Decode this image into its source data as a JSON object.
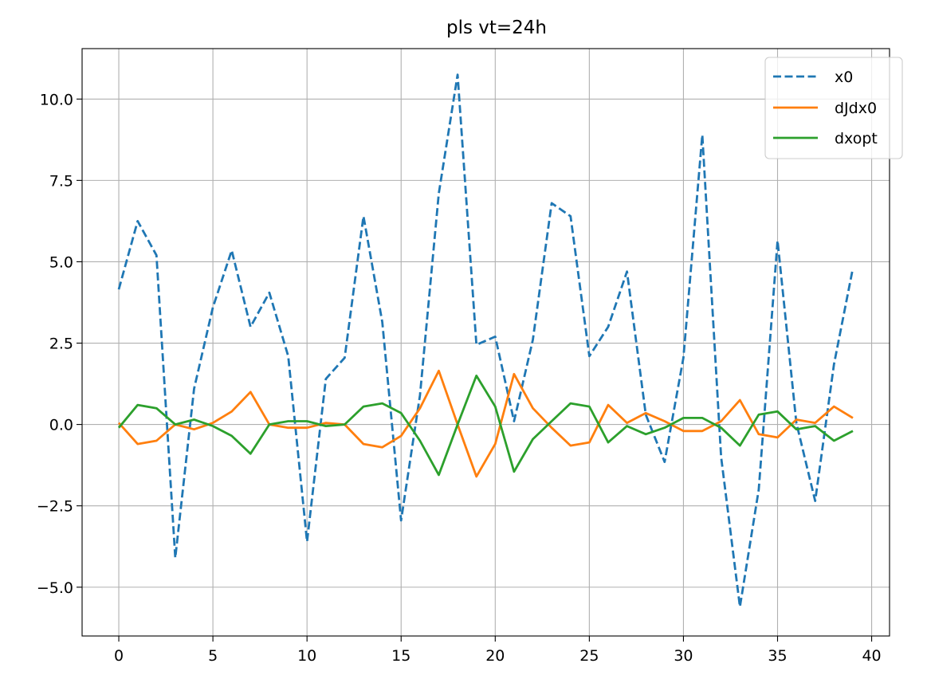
{
  "chart_data": {
    "type": "line",
    "title": "pls vt=24h",
    "xlabel": "",
    "ylabel": "",
    "xlim": [
      -1.95,
      40.95
    ],
    "ylim": [
      -6.5,
      11.55
    ],
    "grid": true,
    "legend_position": "top-right",
    "x_ticks": [
      0,
      5,
      10,
      15,
      20,
      25,
      30,
      35,
      40
    ],
    "x_tick_labels": [
      "0",
      "5",
      "10",
      "15",
      "20",
      "25",
      "30",
      "35",
      "40"
    ],
    "y_ticks": [
      -5.0,
      -2.5,
      0.0,
      2.5,
      5.0,
      7.5,
      10.0
    ],
    "y_tick_labels": [
      "−5.0",
      "−2.5",
      "0.0",
      "2.5",
      "5.0",
      "7.5",
      "10.0"
    ],
    "x": [
      0,
      1,
      2,
      3,
      4,
      5,
      6,
      7,
      8,
      9,
      10,
      11,
      12,
      13,
      14,
      15,
      16,
      17,
      18,
      19,
      20,
      21,
      22,
      23,
      24,
      25,
      26,
      27,
      28,
      29,
      30,
      31,
      32,
      33,
      34,
      35,
      36,
      37,
      38,
      39
    ],
    "series": [
      {
        "name": "x0",
        "color": "#1f77b4",
        "dash": "dashed",
        "values": [
          4.15,
          6.25,
          5.2,
          -4.1,
          1.1,
          3.6,
          5.35,
          3.0,
          4.05,
          2.1,
          -3.6,
          1.4,
          2.05,
          6.4,
          3.15,
          -2.95,
          0.9,
          7.1,
          10.75,
          2.45,
          2.7,
          0.1,
          2.6,
          6.8,
          6.4,
          2.1,
          3.0,
          4.7,
          0.3,
          -1.15,
          2.05,
          8.9,
          -1.0,
          -5.6,
          -2.0,
          5.65,
          0.05,
          -2.35,
          1.85,
          4.8
        ]
      },
      {
        "name": "dJdx0",
        "color": "#ff7f0e",
        "dash": "solid",
        "values": [
          0.05,
          -0.6,
          -0.5,
          0.0,
          -0.15,
          0.05,
          0.4,
          1.0,
          0.0,
          -0.1,
          -0.1,
          0.05,
          0.0,
          -0.6,
          -0.7,
          -0.35,
          0.5,
          1.65,
          0.0,
          -1.6,
          -0.6,
          1.55,
          0.5,
          -0.1,
          -0.65,
          -0.55,
          0.6,
          0.05,
          0.35,
          0.1,
          -0.2,
          -0.2,
          0.1,
          0.75,
          -0.3,
          -0.4,
          0.15,
          0.05,
          0.55,
          0.2
        ]
      },
      {
        "name": "dxopt",
        "color": "#2ca02c",
        "dash": "solid",
        "values": [
          -0.1,
          0.6,
          0.5,
          0.0,
          0.15,
          -0.05,
          -0.35,
          -0.9,
          0.0,
          0.1,
          0.1,
          -0.05,
          0.0,
          0.55,
          0.65,
          0.35,
          -0.5,
          -1.55,
          0.0,
          1.5,
          0.55,
          -1.45,
          -0.45,
          0.1,
          0.65,
          0.55,
          -0.55,
          -0.05,
          -0.3,
          -0.1,
          0.2,
          0.2,
          -0.1,
          -0.65,
          0.3,
          0.4,
          -0.15,
          -0.05,
          -0.5,
          -0.2
        ]
      }
    ]
  }
}
